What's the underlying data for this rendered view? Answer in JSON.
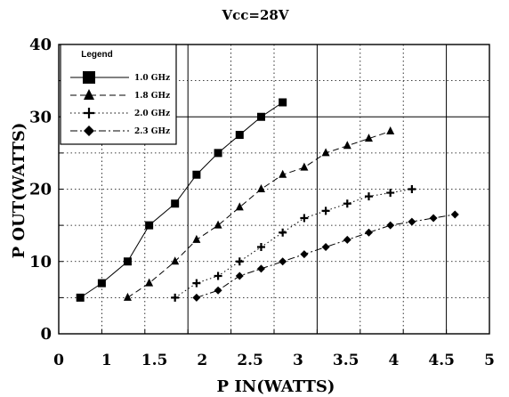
{
  "chart_data": {
    "type": "line",
    "title": "Vcc=28V",
    "xlabel": "P IN(WATTS)",
    "ylabel": "P OUT(WATTS)",
    "xlim": [
      0,
      5
    ],
    "ylim": [
      0,
      40
    ],
    "x_ticks": [
      "0",
      "1",
      "1.5",
      "2",
      "2.5",
      "3",
      "3.5",
      "4",
      "4.5",
      "5"
    ],
    "y_ticks": [
      "0",
      "10",
      "20",
      "30",
      "40"
    ],
    "grid": "dotted",
    "legend_title": "Legend",
    "legend_position": "top-left",
    "series": [
      {
        "name": "1.0 GHz",
        "marker": "square",
        "line": "solid",
        "points": [
          [
            0.25,
            5
          ],
          [
            0.5,
            7
          ],
          [
            0.8,
            10
          ],
          [
            1.05,
            15
          ],
          [
            1.35,
            18
          ],
          [
            1.6,
            22
          ],
          [
            1.85,
            25
          ],
          [
            2.1,
            27.5
          ],
          [
            2.35,
            30
          ],
          [
            2.6,
            32
          ]
        ]
      },
      {
        "name": "1.8 GHz",
        "marker": "triangle",
        "line": "dashed",
        "points": [
          [
            0.8,
            5
          ],
          [
            1.05,
            7
          ],
          [
            1.35,
            10
          ],
          [
            1.6,
            13
          ],
          [
            1.85,
            15
          ],
          [
            2.1,
            17.5
          ],
          [
            2.35,
            20
          ],
          [
            2.6,
            22
          ],
          [
            2.85,
            23
          ],
          [
            3.1,
            25
          ],
          [
            3.35,
            26
          ],
          [
            3.6,
            27
          ],
          [
            3.85,
            28
          ]
        ]
      },
      {
        "name": "2.0 GHz",
        "marker": "plus",
        "line": "dotted",
        "points": [
          [
            1.35,
            5
          ],
          [
            1.6,
            7
          ],
          [
            1.85,
            8
          ],
          [
            2.1,
            10
          ],
          [
            2.35,
            12
          ],
          [
            2.6,
            14
          ],
          [
            2.85,
            16
          ],
          [
            3.1,
            17
          ],
          [
            3.35,
            18
          ],
          [
            3.6,
            19
          ],
          [
            3.85,
            19.5
          ],
          [
            4.1,
            20
          ]
        ]
      },
      {
        "name": "2.3 GHz",
        "marker": "diamond",
        "line": "dashdot",
        "points": [
          [
            1.6,
            5
          ],
          [
            1.85,
            6
          ],
          [
            2.1,
            8
          ],
          [
            2.35,
            9
          ],
          [
            2.6,
            10
          ],
          [
            2.85,
            11
          ],
          [
            3.1,
            12
          ],
          [
            3.35,
            13
          ],
          [
            3.6,
            14
          ],
          [
            3.85,
            15
          ],
          [
            4.1,
            15.5
          ],
          [
            4.35,
            16
          ],
          [
            4.6,
            16.5
          ]
        ]
      }
    ]
  }
}
